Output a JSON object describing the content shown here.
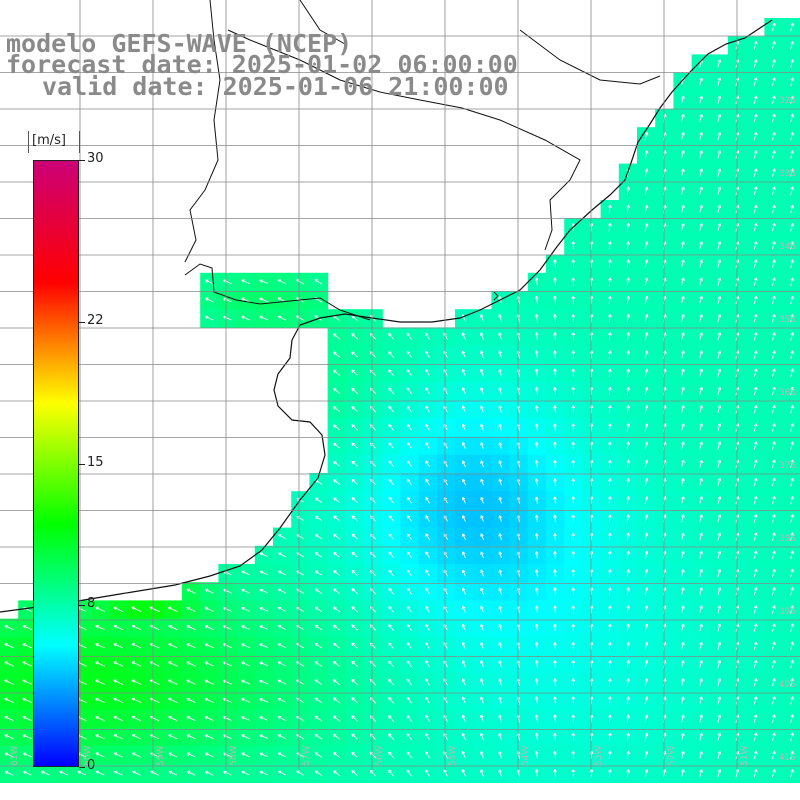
{
  "title": {
    "line1": "modelo GEFS-WAVE (NCEP)",
    "line2": "forecast date: 2025-01-02 06:00:00",
    "line3": "valid date: 2025-01-06 21:00:00"
  },
  "colorbar": {
    "units": "[m/s]",
    "ticks": [
      {
        "value": 0,
        "label": "0"
      },
      {
        "value": 8,
        "label": "8"
      },
      {
        "value": 15,
        "label": "15"
      },
      {
        "value": 22,
        "label": "22"
      },
      {
        "value": 30,
        "label": "30"
      }
    ],
    "min": 0,
    "max": 30,
    "stops": [
      "#0000ff",
      "#00ffff",
      "#00ff00",
      "#ffff00",
      "#ff0000",
      "#cc0077"
    ]
  },
  "map": {
    "lat_labels": [
      "32S",
      "33S",
      "34S",
      "35S",
      "36S",
      "37S",
      "38S",
      "39S",
      "40S",
      "41S"
    ],
    "lon_labels": [
      "61W",
      "60W",
      "59W",
      "58W",
      "57W",
      "56W",
      "55W",
      "54W",
      "53W",
      "52W",
      "51W"
    ],
    "land_color": "#ffffff",
    "grid_color": "#888888",
    "arrow_color": "#ffffff"
  }
}
